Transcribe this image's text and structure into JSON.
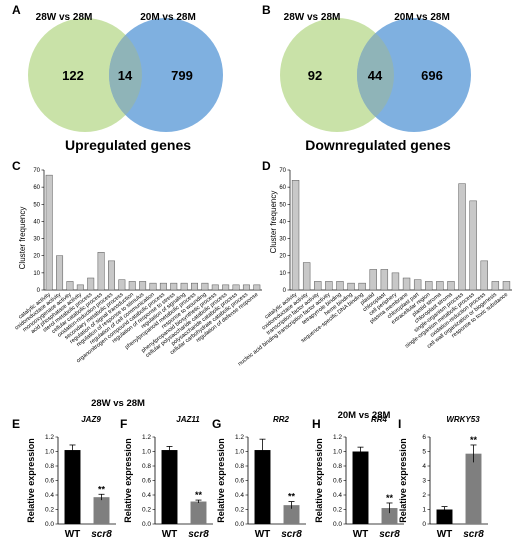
{
  "panels": {
    "A": "A",
    "B": "B",
    "C": "C",
    "D": "D",
    "E": "E",
    "F": "F",
    "G": "G",
    "H": "H",
    "I": "I"
  },
  "venn": [
    {
      "left_label": "28W vs 28M",
      "right_label": "20M vs 28M",
      "left_only": "122",
      "overlap": "14",
      "right_only": "799",
      "caption": "Upregulated genes",
      "left_color": "#c9e2a8",
      "right_color": "#7fb0e0",
      "overlap_color": "#8fb4b8"
    },
    {
      "left_label": "28W vs 28M",
      "right_label": "20M vs 28M",
      "left_only": "92",
      "overlap": "44",
      "right_only": "696",
      "caption": "Downregulated genes",
      "left_color": "#c9e2a8",
      "right_color": "#7fb0e0",
      "overlap_color": "#8fb4b8"
    }
  ],
  "chart_data": [
    {
      "type": "bar",
      "ylabel": "Cluster frequency",
      "xlabel": "28W vs 28M",
      "ylim": [
        0,
        70
      ],
      "yticks": [
        0,
        10,
        20,
        30,
        40,
        50,
        60,
        70
      ],
      "bar_color": "#c8c8c8",
      "categories": [
        "catalytic activity",
        "oxidoreductase activity",
        "monooxygenase activity",
        "acid phosphatase activity",
        "sterol metabolic process",
        "cellular catabolic process",
        "oxidation-reduction process",
        "secondary metabolic process",
        "regulation of signal transduction",
        "regulation of response to stimulus",
        "regulation of cell communication",
        "organonitrogen compound catabolic process",
        "regulation of response to stress",
        "regulation of signaling",
        "phenylpropanoid metabolic process",
        "response to wounding",
        "phenylpropanoid biosynthetic process",
        "cellular polysaccharide catabolic process",
        "polysaccharide catabolic process",
        "cellular carbohydrate catabolic process",
        "regulation of defense response"
      ],
      "values": [
        67,
        20,
        5,
        3,
        7,
        22,
        17,
        6,
        5,
        5,
        4,
        4,
        4,
        4,
        4,
        4,
        3,
        3,
        3,
        3,
        3
      ]
    },
    {
      "type": "bar",
      "ylabel": "Cluster frequency",
      "xlabel": "20M vs 28M",
      "ylim": [
        0,
        70
      ],
      "yticks": [
        0,
        10,
        20,
        30,
        40,
        50,
        60,
        70
      ],
      "bar_color": "#c8c8c8",
      "categories": [
        "catalytic activity",
        "oxidoreductase activity",
        "transcription factor activity",
        "nucleic acid binding transcription factor activity",
        "tetrapyrrole binding",
        "heme binding",
        "sequence-specific DNA binding",
        "plastid",
        "chloroplast",
        "cell periphery",
        "plasma membrane",
        "chloroplast part",
        "extracellular region",
        "plastid stroma",
        "chloroplast stroma",
        "single-organism process",
        "single-organism metabolic process",
        "oxidation-reduction process",
        "cell wall organization or biogenesis",
        "response to toxic substance"
      ],
      "values": [
        64,
        16,
        5,
        5,
        5,
        4,
        4,
        12,
        12,
        10,
        7,
        6,
        5,
        5,
        5,
        62,
        52,
        17,
        5,
        5
      ]
    },
    {
      "type": "bar",
      "gene": "JAZ9",
      "ylabel": "Relative expression",
      "categories": [
        "WT",
        "scr8"
      ],
      "values": [
        1.02,
        0.37
      ],
      "errors": [
        0.07,
        0.04
      ],
      "colors": [
        "#000000",
        "#7f7f7f"
      ],
      "significance": [
        "",
        "**"
      ],
      "ylim": [
        0,
        1.2
      ],
      "yticks": [
        "0.0",
        "0.2",
        "0.4",
        "0.6",
        "0.8",
        "1.0",
        "1.2"
      ]
    },
    {
      "type": "bar",
      "gene": "JAZ11",
      "ylabel": "Relative expression",
      "categories": [
        "WT",
        "scr8"
      ],
      "values": [
        1.02,
        0.31
      ],
      "errors": [
        0.05,
        0.02
      ],
      "colors": [
        "#000000",
        "#7f7f7f"
      ],
      "significance": [
        "",
        "**"
      ],
      "ylim": [
        0,
        1.2
      ],
      "yticks": [
        "0.0",
        "0.2",
        "0.4",
        "0.6",
        "0.8",
        "1.0",
        "1.2"
      ]
    },
    {
      "type": "bar",
      "gene": "RR2",
      "ylabel": "Relative expression",
      "categories": [
        "WT",
        "scr8"
      ],
      "values": [
        1.02,
        0.26
      ],
      "errors": [
        0.15,
        0.05
      ],
      "colors": [
        "#000000",
        "#7f7f7f"
      ],
      "significance": [
        "",
        "**"
      ],
      "ylim": [
        0,
        1.2
      ],
      "yticks": [
        "0.0",
        "0.2",
        "0.4",
        "0.6",
        "0.8",
        "1.0",
        "1.2"
      ]
    },
    {
      "type": "bar",
      "gene": "RR4",
      "ylabel": "Relative expression",
      "categories": [
        "WT",
        "scr8"
      ],
      "values": [
        1.0,
        0.22
      ],
      "errors": [
        0.06,
        0.07
      ],
      "colors": [
        "#000000",
        "#7f7f7f"
      ],
      "significance": [
        "",
        "**"
      ],
      "ylim": [
        0,
        1.2
      ],
      "yticks": [
        "0.0",
        "0.2",
        "0.4",
        "0.6",
        "0.8",
        "1.0",
        "1.2"
      ]
    },
    {
      "type": "bar",
      "gene": "WRKY53",
      "ylabel": "Relative expression",
      "categories": [
        "WT",
        "scr8"
      ],
      "values": [
        1.0,
        4.85
      ],
      "errors": [
        0.2,
        0.6
      ],
      "colors": [
        "#000000",
        "#7f7f7f"
      ],
      "significance": [
        "",
        "**"
      ],
      "ylim": [
        0,
        6
      ],
      "yticks": [
        "0",
        "1",
        "2",
        "3",
        "4",
        "5",
        "6"
      ]
    }
  ]
}
